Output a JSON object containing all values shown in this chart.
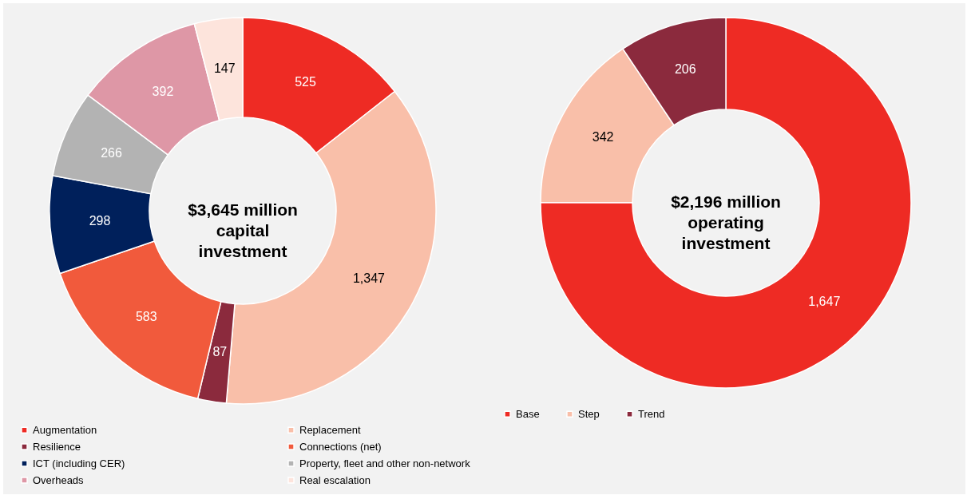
{
  "chart_data": [
    {
      "type": "donut",
      "categories": [
        "Augmentation",
        "Replacement",
        "Resilience",
        "Connections (net)",
        "ICT (including CER)",
        "Property, fleet and other non-network",
        "Overheads",
        "Real escalation"
      ],
      "values": [
        525,
        1347,
        87,
        583,
        298,
        266,
        392,
        147
      ],
      "colors": [
        "#ee2b24",
        "#f9bfa9",
        "#8b2a3d",
        "#f15a3c",
        "#00205b",
        "#b3b3b3",
        "#de97a6",
        "#fde4dc"
      ],
      "value_labels": [
        "525",
        "1,347",
        "87",
        "583",
        "298",
        "266",
        "392",
        "147"
      ],
      "legend": "bottom",
      "annotations": [
        "$3,645 million",
        "capital",
        "investment"
      ]
    },
    {
      "type": "donut",
      "categories": [
        "Base",
        "Step",
        "Trend"
      ],
      "values": [
        1647,
        342,
        206
      ],
      "colors": [
        "#ee2b24",
        "#f9bfa9",
        "#8b2a3d"
      ],
      "value_labels": [
        "1,647",
        "342",
        "206"
      ],
      "legend": "bottom",
      "annotations": [
        "$2,196 million",
        "operating",
        "investment"
      ]
    }
  ]
}
